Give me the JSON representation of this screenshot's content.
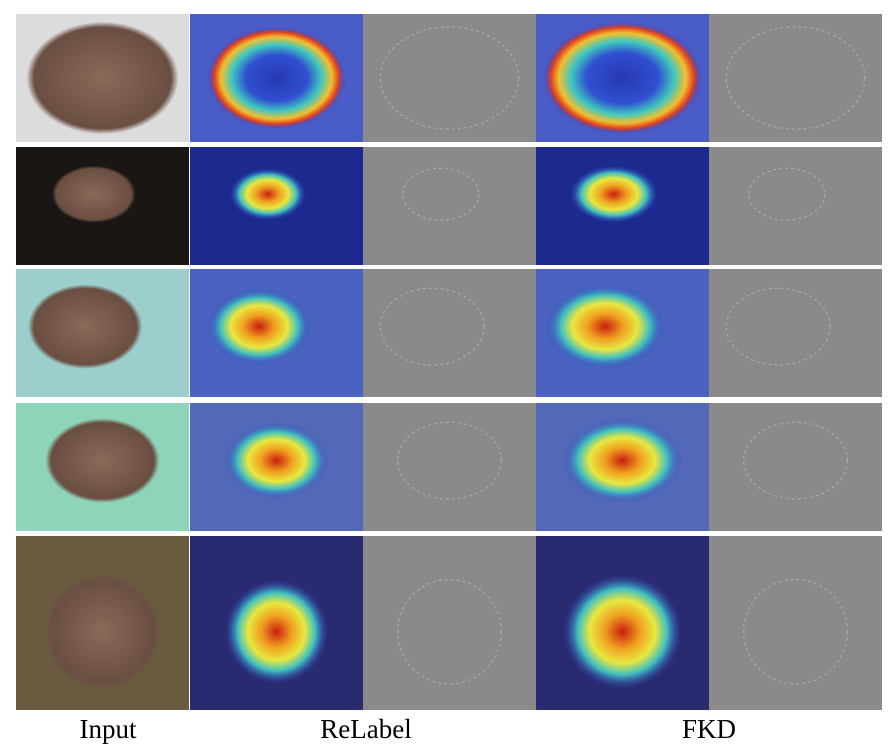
{
  "figure": {
    "column_labels": [
      "Input",
      "ReLabel",
      "FKD"
    ]
  }
}
